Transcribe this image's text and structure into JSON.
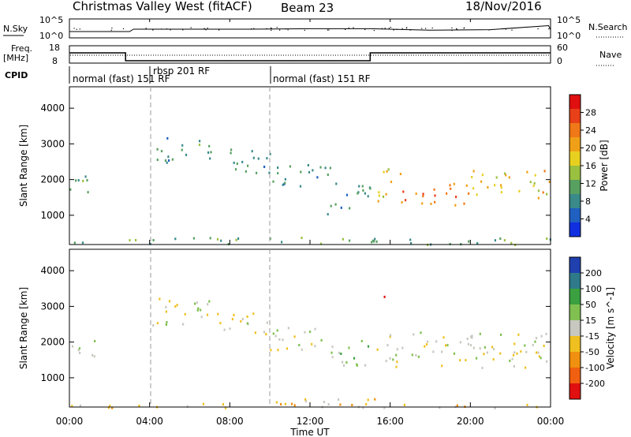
{
  "header": {
    "title": "Christmas Valley West (fitACF)",
    "beam": "Beam 23",
    "date": "18/Nov/2016"
  },
  "strips": {
    "nsky_label": "N.Sky",
    "nsky_ticks": [
      "10^5",
      "10^0"
    ],
    "nsearch_label": "N.Search",
    "nsearch_ticks": [
      "10^5",
      "10^0"
    ],
    "freq_label": "Freq.",
    "freq_unit": "[MHz]",
    "freq_ticks": [
      "18",
      "8"
    ],
    "nave_label": "Nave",
    "nave_ticks": [
      "60",
      "0"
    ],
    "cpid_label": "CPID",
    "cpid_segments": [
      {
        "text": "normal (fast) 151 RF",
        "start_hour": 0
      },
      {
        "text": "rbsp 201 RF",
        "start_hour": 4
      },
      {
        "text": "normal (fast) 151 RF",
        "start_hour": 10
      }
    ]
  },
  "axes": {
    "x_ticks": [
      "00:00",
      "04:00",
      "08:00",
      "12:00",
      "16:00",
      "20:00",
      "00:00"
    ],
    "x_label": "Time UT",
    "y_label": "Slant Range [km]",
    "y_ticks": [
      "1000",
      "2000",
      "3000",
      "4000"
    ]
  },
  "colorbars": {
    "power": {
      "label": "Power [dB]",
      "ticks": [
        "4",
        "8",
        "12",
        "16",
        "20",
        "24",
        "28"
      ],
      "colors": [
        "#1030e0",
        "#2060c0",
        "#3a8a8a",
        "#58a060",
        "#9ac040",
        "#e8d020",
        "#f0a018",
        "#f07818",
        "#e84018",
        "#e01010"
      ]
    },
    "velocity": {
      "label": "Velocity [m s^-1]",
      "ticks": [
        "200",
        "100",
        "50",
        "15",
        "-15",
        "-50",
        "-100",
        "-200"
      ],
      "colors": [
        "#2040b0",
        "#2e7a8a",
        "#3aa040",
        "#80c050",
        "#c8c8c0",
        "#f0c020",
        "#f09010",
        "#f06010",
        "#e01010"
      ]
    }
  },
  "chart_data": [
    {
      "type": "line",
      "name": "N.Sky / N.Search",
      "x_range_hours": [
        0,
        24
      ],
      "x": [
        0,
        3,
        3.2,
        6,
        9,
        12,
        15,
        18,
        21,
        23.9,
        24
      ],
      "y": [
        2,
        2,
        3,
        3,
        3,
        3.2,
        3.2,
        2.6,
        2.8,
        4.5,
        2.8
      ]
    },
    {
      "type": "line",
      "name": "Freq.",
      "x_range_hours": [
        0,
        24
      ],
      "x": [
        0,
        2.8,
        2.8,
        15,
        15,
        24
      ],
      "y": [
        14,
        14,
        9,
        9,
        14,
        14
      ],
      "ylim": [
        8,
        18
      ]
    },
    {
      "type": "heatmap",
      "title": "Power",
      "xlim": [
        0,
        24
      ],
      "ylim": [
        180,
        4600
      ],
      "clim": [
        0,
        30
      ],
      "blobs": [
        {
          "t0": 0,
          "t1": 1.3,
          "r0": 1600,
          "r1": 2200,
          "value": 10
        },
        {
          "t0": 4.1,
          "t1": 6.2,
          "r0": 2500,
          "r1": 3200,
          "value": 8
        },
        {
          "t0": 6.2,
          "t1": 7.2,
          "r0": 2600,
          "r1": 3300,
          "value": 10
        },
        {
          "t0": 7.2,
          "t1": 10,
          "r0": 2200,
          "r1": 2900,
          "value": 8
        },
        {
          "t0": 10,
          "t1": 13,
          "r0": 1800,
          "r1": 2500,
          "value": 9
        },
        {
          "t0": 13,
          "t1": 15,
          "r0": 1200,
          "r1": 2100,
          "value": 8
        },
        {
          "t0": 11,
          "t1": 13,
          "r0": 1030,
          "r1": 1100,
          "value": 6
        },
        {
          "t0": 15.3,
          "t1": 16.5,
          "r0": 1400,
          "r1": 2400,
          "value": 18
        },
        {
          "t0": 16.5,
          "t1": 20,
          "r0": 1300,
          "r1": 2000,
          "value": 22
        },
        {
          "t0": 20,
          "t1": 24,
          "r0": 1500,
          "r1": 2300,
          "value": 18
        },
        {
          "t0": 0,
          "t1": 24,
          "r0": 200,
          "r1": 400,
          "value": 10
        }
      ]
    },
    {
      "type": "heatmap",
      "title": "Velocity",
      "xlim": [
        0,
        24
      ],
      "ylim": [
        180,
        4600
      ],
      "clim": [
        -200,
        200
      ],
      "blobs": [
        {
          "t0": 0,
          "t1": 1.3,
          "r0": 1600,
          "r1": 2200,
          "value": 0
        },
        {
          "t0": 4.1,
          "t1": 7.2,
          "r0": 2500,
          "r1": 3300,
          "value": 0
        },
        {
          "t0": 7.2,
          "t1": 10,
          "r0": 2200,
          "r1": 2900,
          "value": 0
        },
        {
          "t0": 10,
          "t1": 13,
          "r0": 1800,
          "r1": 2500,
          "value": 0
        },
        {
          "t0": 13,
          "t1": 15,
          "r0": 1200,
          "r1": 2100,
          "value": 30
        },
        {
          "t0": 15.3,
          "t1": 15.8,
          "r0": 3100,
          "r1": 3400,
          "value": -200
        },
        {
          "t0": 15.3,
          "t1": 24,
          "r0": 1300,
          "r1": 2300,
          "value": 0
        },
        {
          "t0": 10,
          "t1": 16,
          "r0": 180,
          "r1": 450,
          "value": -60
        },
        {
          "t0": 0,
          "t1": 24,
          "r0": 180,
          "r1": 300,
          "value": -30
        }
      ]
    }
  ]
}
